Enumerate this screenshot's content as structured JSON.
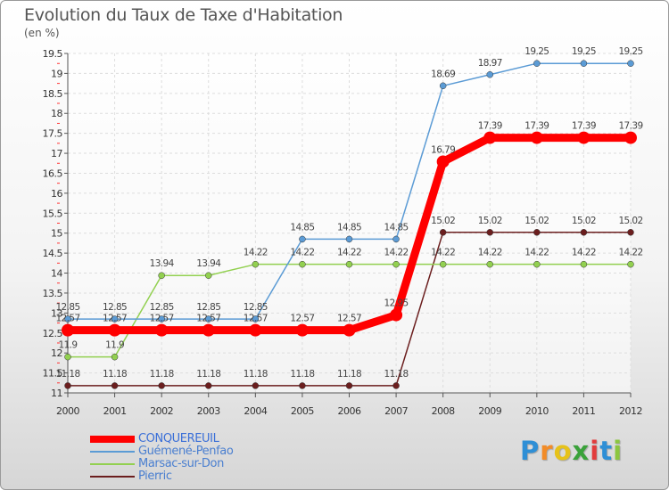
{
  "header": {
    "title": "Evolution du Taux de Taxe d'Habitation",
    "units": "(en %)"
  },
  "chart_data": {
    "type": "line",
    "title": "Evolution du Taux de Taxe d'Habitation",
    "ylabel": "(en %)",
    "x": [
      "2000",
      "2001",
      "2002",
      "2003",
      "2004",
      "2005",
      "2006",
      "2007",
      "2008",
      "2009",
      "2010",
      "2011",
      "2012"
    ],
    "ylim": [
      11,
      19.5
    ],
    "yticks": [
      11,
      11.5,
      12,
      12.5,
      13,
      13.5,
      14,
      14.5,
      15,
      15.5,
      16,
      16.5,
      17,
      17.5,
      18,
      18.5,
      19,
      19.5
    ],
    "ytick_labels": [
      "11",
      "11.5",
      "12",
      "12.5",
      "13",
      "13.5",
      "14",
      "14.5",
      "15",
      "15.5",
      "16",
      "16.5",
      "17",
      "17.5",
      "18",
      "18.5",
      "19",
      "19.5"
    ],
    "grid": true,
    "legend": "bottom-left",
    "series": [
      {
        "name": "CONQUEREUIL",
        "color": "#ff0000",
        "values": [
          12.57,
          12.57,
          12.57,
          12.57,
          12.57,
          12.57,
          12.57,
          12.95,
          16.79,
          17.39,
          17.39,
          17.39,
          17.39
        ],
        "labels": [
          "12.57",
          "12.57",
          "12.57",
          "12.57",
          "12.57",
          "12.57",
          "12.57",
          "12.95",
          "16.79",
          "17.39",
          "17.39",
          "17.39",
          "17.39"
        ]
      },
      {
        "name": "Guémené-Penfao",
        "color": "#5b9bd5",
        "values": [
          12.85,
          12.85,
          12.85,
          12.85,
          12.85,
          14.85,
          14.85,
          14.85,
          18.69,
          18.97,
          19.25,
          19.25,
          19.25
        ],
        "labels": [
          "12.85",
          "12.85",
          "12.85",
          "12.85",
          "12.85",
          "14.85",
          "14.85",
          "14.85",
          "18.69",
          "18.97",
          "19.25",
          "19.25",
          "19.25"
        ]
      },
      {
        "name": "Marsac-sur-Don",
        "color": "#92d050",
        "values": [
          11.9,
          11.9,
          13.94,
          13.94,
          14.22,
          14.22,
          14.22,
          14.22,
          14.22,
          14.22,
          14.22,
          14.22,
          14.22
        ],
        "labels": [
          "11.9",
          "11.9",
          "13.94",
          "13.94",
          "14.22",
          "14.22",
          "14.22",
          "14.22",
          "14.22",
          "14.22",
          "14.22",
          "14.22",
          "14.22"
        ]
      },
      {
        "name": "Pierric",
        "color": "#6b1e1e",
        "values": [
          11.18,
          11.18,
          11.18,
          11.18,
          11.18,
          11.18,
          11.18,
          11.18,
          15.02,
          15.02,
          15.02,
          15.02,
          15.02
        ],
        "labels": [
          "11.18",
          "11.18",
          "11.18",
          "11.18",
          "11.18",
          "11.18",
          "11.18",
          "11.18",
          "15.02",
          "15.02",
          "15.02",
          "15.02",
          "15.02"
        ]
      }
    ]
  },
  "logo": {
    "letters": [
      "P",
      "r",
      "o",
      "x",
      "i",
      "t",
      "i"
    ],
    "colors": [
      "#2e8fd6",
      "#f28c28",
      "#e6c21a",
      "#3aa23a",
      "#e23b3b",
      "#2e8fd6",
      "#8cc63f"
    ]
  }
}
